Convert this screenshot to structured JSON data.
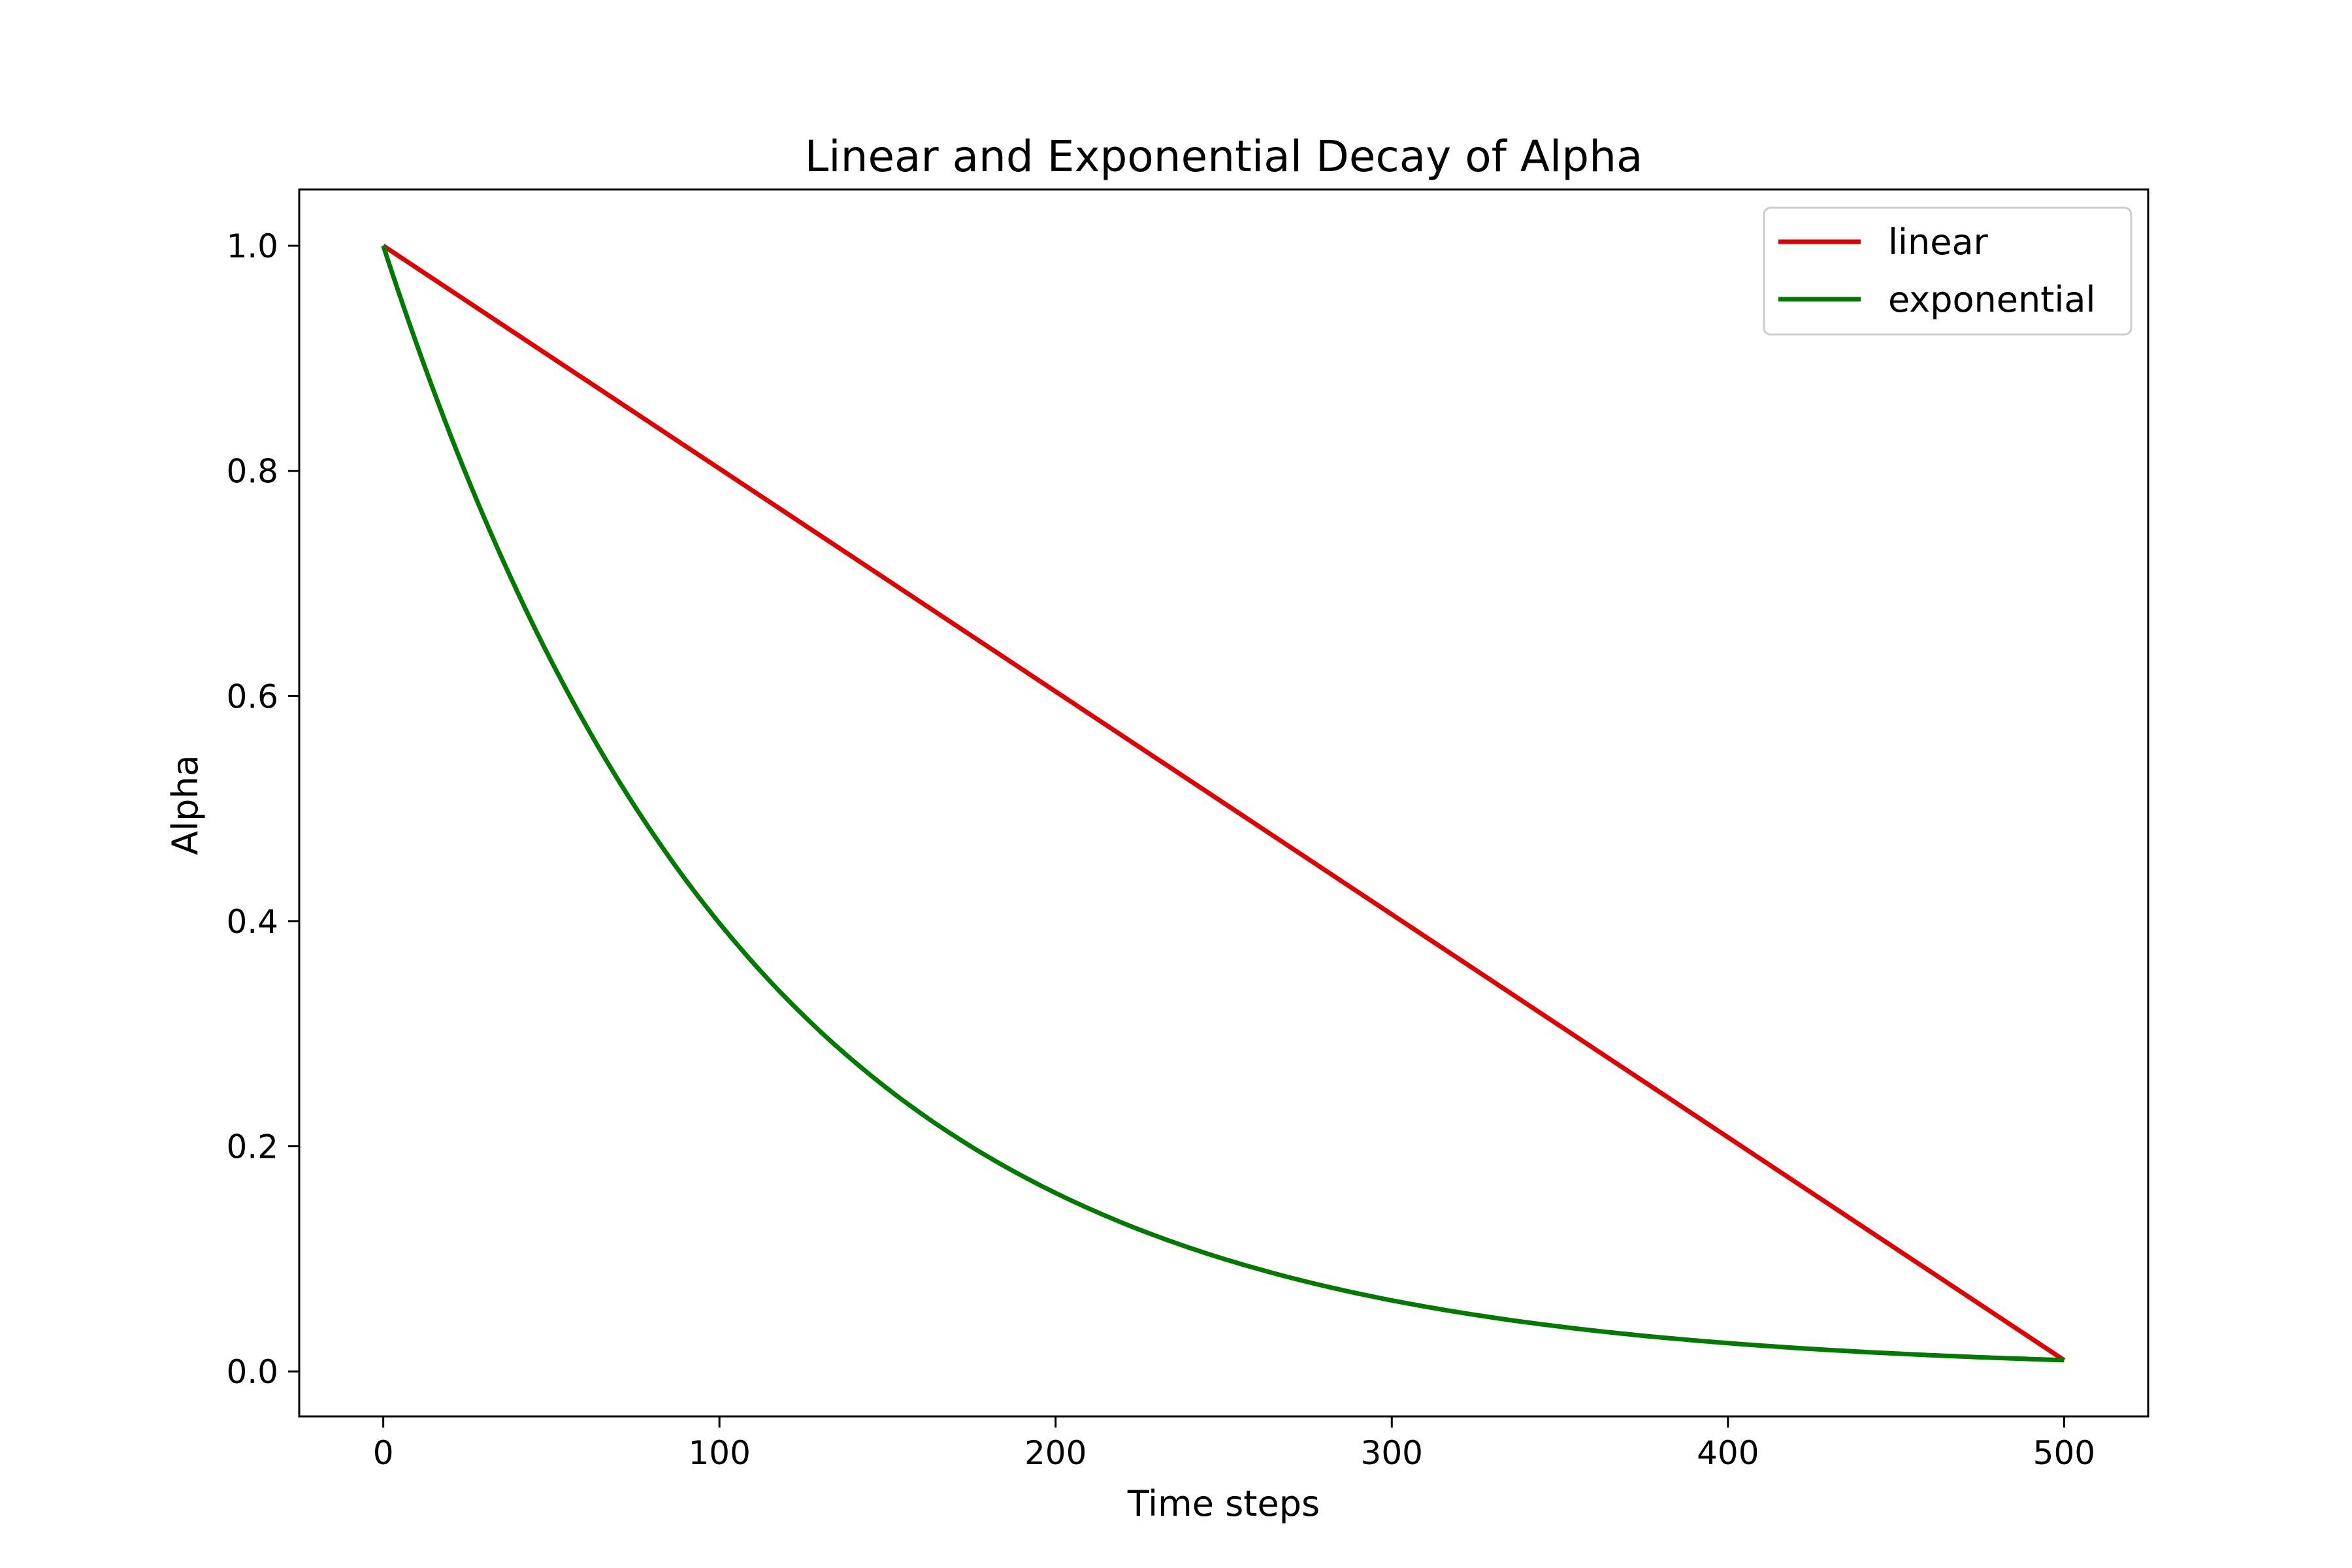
{
  "chart_data": {
    "type": "line",
    "title": "Linear and Exponential Decay of Alpha",
    "xlabel": "Time steps",
    "ylabel": "Alpha",
    "xlim": [
      -25,
      525
    ],
    "ylim": [
      -0.04,
      1.05
    ],
    "xticks": [
      0,
      100,
      200,
      300,
      400,
      500
    ],
    "xtick_labels": [
      "0",
      "100",
      "200",
      "300",
      "400",
      "500"
    ],
    "yticks": [
      0.0,
      0.2,
      0.4,
      0.6,
      0.8,
      1.0
    ],
    "ytick_labels": [
      "0.0",
      "0.2",
      "0.4",
      "0.6",
      "0.8",
      "1.0"
    ],
    "grid": false,
    "legend_position": "top-right",
    "series": [
      {
        "name": "linear",
        "color": "#e00000",
        "x": [
          0,
          100,
          200,
          300,
          400,
          500
        ],
        "y": [
          1.0,
          0.802,
          0.604,
          0.406,
          0.208,
          0.01
        ]
      },
      {
        "name": "exponential",
        "color": "#007a00",
        "x": [
          0,
          25,
          50,
          75,
          100,
          125,
          150,
          175,
          200,
          225,
          250,
          275,
          300,
          325,
          350,
          375,
          400,
          425,
          450,
          475,
          500
        ],
        "y": [
          1.0,
          0.794,
          0.631,
          0.501,
          0.398,
          0.316,
          0.251,
          0.2,
          0.158,
          0.126,
          0.1,
          0.079,
          0.063,
          0.05,
          0.04,
          0.032,
          0.025,
          0.02,
          0.016,
          0.013,
          0.01
        ]
      }
    ]
  }
}
